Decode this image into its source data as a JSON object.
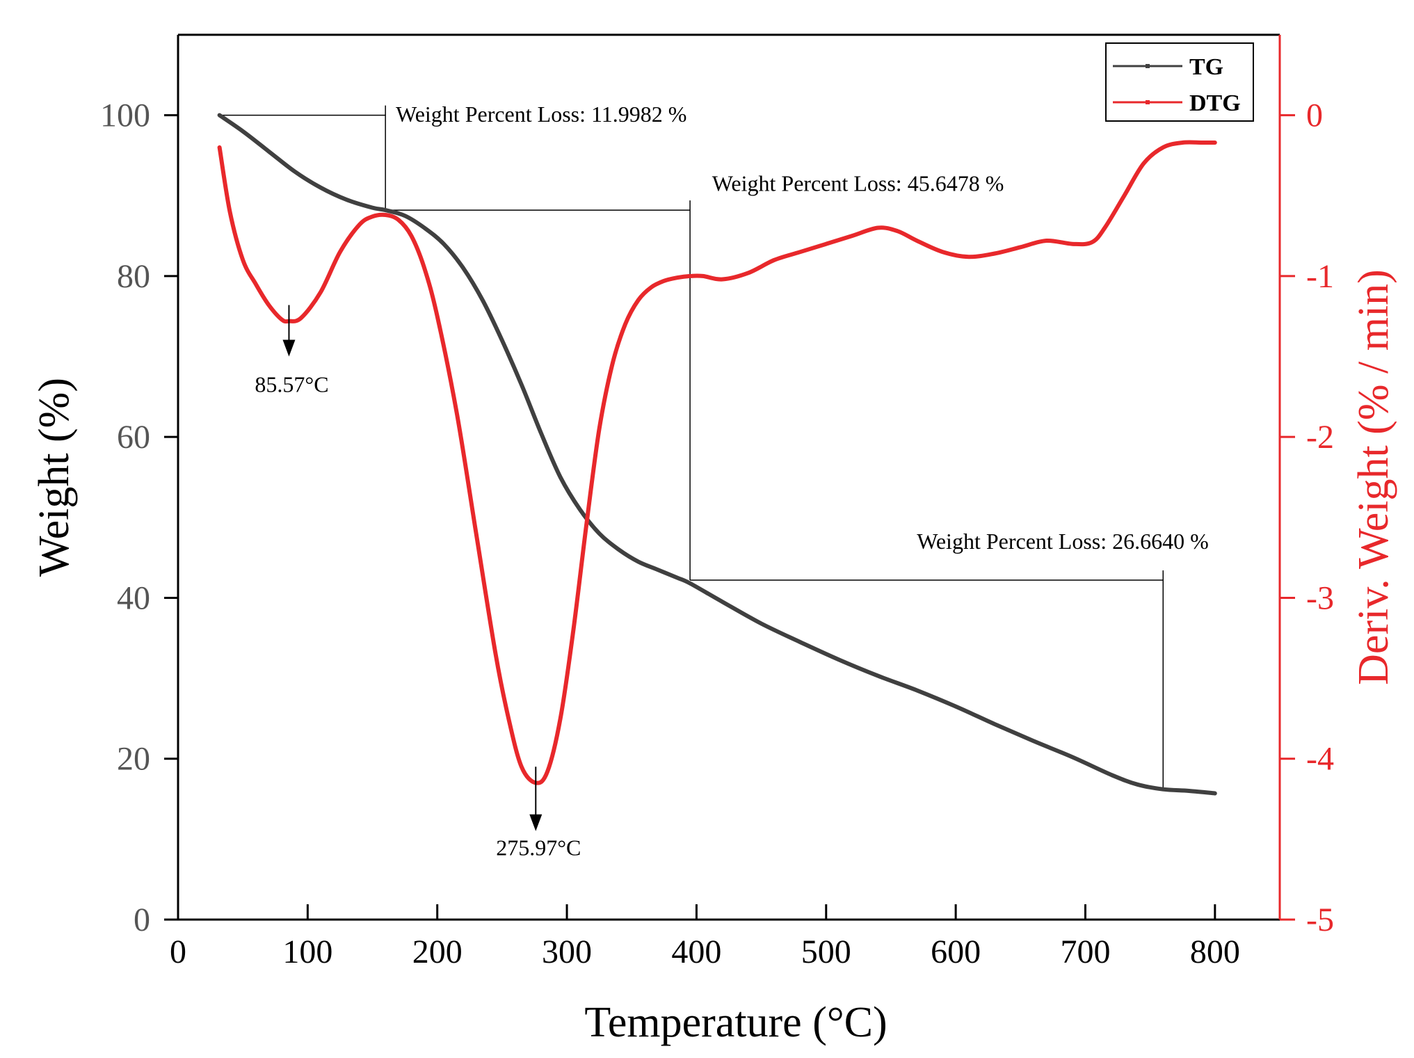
{
  "chart_data": {
    "type": "line",
    "title": "",
    "xlabel": "Temperature (°C)",
    "ylabel": "Weight (%)",
    "y2label": "Deriv. Weight (% / min)",
    "xlim": [
      0,
      850
    ],
    "ylim": [
      0,
      110
    ],
    "y2lim": [
      -5,
      0.5
    ],
    "x_ticks": [
      0,
      100,
      200,
      300,
      400,
      500,
      600,
      700,
      800
    ],
    "y_ticks": [
      0,
      20,
      40,
      60,
      80,
      100
    ],
    "y2_ticks": [
      -5,
      -4,
      -3,
      -2,
      -1,
      0
    ],
    "legend_position": "top-right",
    "series": [
      {
        "name": "TG",
        "axis": "left",
        "color": "#404040",
        "x": [
          32,
          50,
          70,
          90,
          110,
          130,
          150,
          160,
          175,
          190,
          205,
          220,
          235,
          250,
          265,
          280,
          295,
          310,
          325,
          340,
          355,
          370,
          385,
          395,
          420,
          450,
          480,
          510,
          540,
          570,
          600,
          630,
          660,
          690,
          720,
          740,
          760,
          780,
          800
        ],
        "values": [
          100,
          98,
          95.5,
          93,
          91,
          89.5,
          88.5,
          88.2,
          87.5,
          86,
          84,
          81,
          77,
          72,
          66.5,
          60.5,
          55,
          51,
          48,
          46,
          44.5,
          43.5,
          42.5,
          41.8,
          39.5,
          36.8,
          34.5,
          32.3,
          30.3,
          28.5,
          26.5,
          24.3,
          22.2,
          20.2,
          18,
          16.8,
          16.2,
          16,
          15.7
        ]
      },
      {
        "name": "DTG",
        "axis": "right",
        "color": "#e8282b",
        "x": [
          32,
          40,
          50,
          60,
          70,
          80,
          85.57,
          95,
          110,
          125,
          140,
          150,
          160,
          170,
          180,
          190,
          200,
          215,
          230,
          245,
          255,
          265,
          275.97,
          285,
          295,
          305,
          315,
          325,
          335,
          345,
          355,
          365,
          375,
          385,
          395,
          405,
          420,
          440,
          460,
          480,
          500,
          520,
          540,
          555,
          570,
          590,
          610,
          630,
          650,
          670,
          690,
          705,
          715,
          730,
          745,
          760,
          775,
          790,
          800
        ],
        "values": [
          -0.2,
          -0.6,
          -0.9,
          -1.05,
          -1.18,
          -1.27,
          -1.28,
          -1.26,
          -1.1,
          -0.85,
          -0.68,
          -0.63,
          -0.62,
          -0.65,
          -0.75,
          -0.95,
          -1.25,
          -1.85,
          -2.6,
          -3.35,
          -3.75,
          -4.05,
          -4.15,
          -4.08,
          -3.75,
          -3.2,
          -2.55,
          -1.95,
          -1.55,
          -1.3,
          -1.15,
          -1.07,
          -1.03,
          -1.01,
          -1.0,
          -1.0,
          -1.02,
          -0.98,
          -0.9,
          -0.85,
          -0.8,
          -0.75,
          -0.7,
          -0.72,
          -0.78,
          -0.85,
          -0.88,
          -0.86,
          -0.82,
          -0.78,
          -0.8,
          -0.79,
          -0.7,
          -0.5,
          -0.3,
          -0.2,
          -0.17,
          -0.17,
          -0.17
        ]
      }
    ],
    "peak_labels": [
      {
        "text": "85.57°C",
        "x": 85.57,
        "arrow_from_y2": -1.18,
        "arrow_to_y2": -1.5,
        "label_y2": -1.72
      },
      {
        "text": "275.97°C",
        "x": 275.97,
        "arrow_from_y2": -4.05,
        "arrow_to_y2": -4.45,
        "label_y2": -4.6
      }
    ],
    "loss_annotations": [
      {
        "text": "Weight Percent Loss: 11.9982 %",
        "x_start": 32,
        "x_end": 160,
        "y_start": 100,
        "y_end": 88.2,
        "label_x": 168,
        "label_y": 99.2
      },
      {
        "text": "Weight Percent Loss: 45.6478 %",
        "x_start": 160,
        "x_end": 395,
        "y_start": 88.2,
        "y_end": 42.2,
        "label_x": 412,
        "label_y": 90.6
      },
      {
        "text": "Weight Percent Loss: 26.6640 %",
        "x_start": 395,
        "x_end": 760,
        "y_start": 42.2,
        "y_end": 16.2,
        "label_x": 570,
        "label_y": 46.1
      }
    ]
  }
}
